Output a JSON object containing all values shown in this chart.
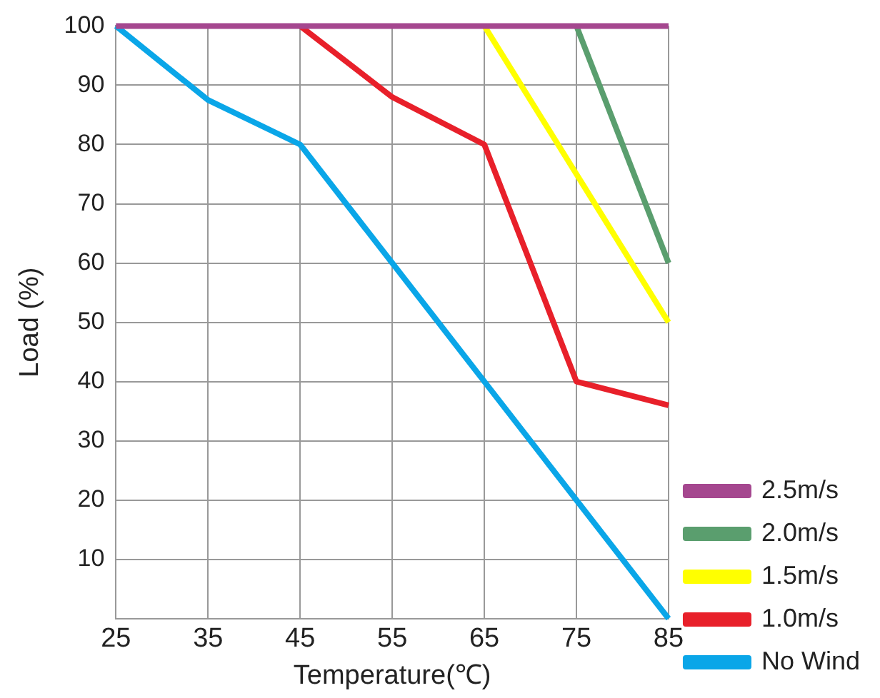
{
  "chart_data": {
    "type": "line",
    "xlabel": "Temperature(℃)",
    "ylabel": "Load (%)",
    "xlim": [
      25,
      85
    ],
    "xticks": [
      25,
      35,
      45,
      55,
      65,
      75,
      85
    ],
    "ylim": [
      0,
      100
    ],
    "yticks": [
      10,
      20,
      30,
      40,
      50,
      60,
      70,
      80,
      90,
      100
    ],
    "grid": true,
    "legend": "right",
    "marker": "none",
    "line_style": "solid",
    "series": [
      {
        "name": "2.5m/s",
        "color": "#a5478f",
        "x": [
          25,
          85
        ],
        "values": [
          100,
          100
        ]
      },
      {
        "name": "2.0m/s",
        "color": "#5a9e6e",
        "x": [
          75,
          85
        ],
        "values": [
          100,
          60
        ]
      },
      {
        "name": "1.5m/s",
        "color": "#ffff00",
        "x": [
          65,
          75,
          85
        ],
        "values": [
          100,
          75,
          50
        ]
      },
      {
        "name": "1.0m/s",
        "color": "#e8202a",
        "x": [
          45,
          55,
          65,
          75,
          85
        ],
        "values": [
          100,
          88,
          80,
          40,
          36
        ]
      },
      {
        "name": "No Wind",
        "color": "#0aa6e8",
        "x": [
          25,
          35,
          45,
          55,
          65,
          75,
          85
        ],
        "values": [
          100,
          87.5,
          80,
          60,
          40,
          20,
          0
        ]
      }
    ]
  }
}
